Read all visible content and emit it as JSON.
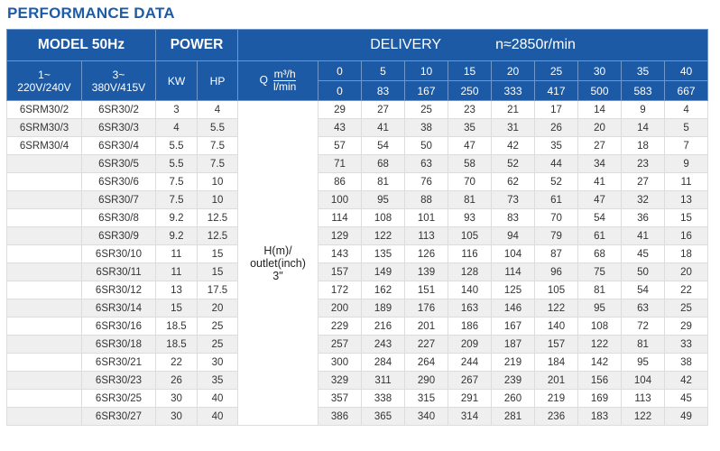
{
  "title": "PERFORMANCE DATA",
  "header": {
    "model": "MODEL 50Hz",
    "power": "POWER",
    "delivery": "DELIVERY",
    "speed": "n≈2850r/min",
    "single_phase": [
      "1~",
      "220V/240V"
    ],
    "three_phase": [
      "3~",
      "380V/415V"
    ],
    "kw": "KW",
    "hp": "HP",
    "q": "Q",
    "q_unit_top": "m³/h",
    "q_unit_bottom": "l/min",
    "flow_m3h": [
      "0",
      "5",
      "10",
      "15",
      "20",
      "25",
      "30",
      "35",
      "40"
    ],
    "flow_lmin": [
      "0",
      "83",
      "167",
      "250",
      "333",
      "417",
      "500",
      "583",
      "667"
    ]
  },
  "head_label": [
    "H(m)/",
    "outlet(inch)",
    "3\""
  ],
  "rows": [
    {
      "m1": "6SRM30/2",
      "m3": "6SR30/2",
      "kw": "3",
      "hp": "4",
      "h": [
        "29",
        "27",
        "25",
        "23",
        "21",
        "17",
        "14",
        "9",
        "4"
      ]
    },
    {
      "m1": "6SRM30/3",
      "m3": "6SR30/3",
      "kw": "4",
      "hp": "5.5",
      "h": [
        "43",
        "41",
        "38",
        "35",
        "31",
        "26",
        "20",
        "14",
        "5"
      ]
    },
    {
      "m1": "6SRM30/4",
      "m3": "6SR30/4",
      "kw": "5.5",
      "hp": "7.5",
      "h": [
        "57",
        "54",
        "50",
        "47",
        "42",
        "35",
        "27",
        "18",
        "7"
      ]
    },
    {
      "m1": "",
      "m3": "6SR30/5",
      "kw": "5.5",
      "hp": "7.5",
      "h": [
        "71",
        "68",
        "63",
        "58",
        "52",
        "44",
        "34",
        "23",
        "9"
      ]
    },
    {
      "m1": "",
      "m3": "6SR30/6",
      "kw": "7.5",
      "hp": "10",
      "h": [
        "86",
        "81",
        "76",
        "70",
        "62",
        "52",
        "41",
        "27",
        "11"
      ]
    },
    {
      "m1": "",
      "m3": "6SR30/7",
      "kw": "7.5",
      "hp": "10",
      "h": [
        "100",
        "95",
        "88",
        "81",
        "73",
        "61",
        "47",
        "32",
        "13"
      ]
    },
    {
      "m1": "",
      "m3": "6SR30/8",
      "kw": "9.2",
      "hp": "12.5",
      "h": [
        "114",
        "108",
        "101",
        "93",
        "83",
        "70",
        "54",
        "36",
        "15"
      ]
    },
    {
      "m1": "",
      "m3": "6SR30/9",
      "kw": "9.2",
      "hp": "12.5",
      "h": [
        "129",
        "122",
        "113",
        "105",
        "94",
        "79",
        "61",
        "41",
        "16"
      ]
    },
    {
      "m1": "",
      "m3": "6SR30/10",
      "kw": "11",
      "hp": "15",
      "h": [
        "143",
        "135",
        "126",
        "116",
        "104",
        "87",
        "68",
        "45",
        "18"
      ]
    },
    {
      "m1": "",
      "m3": "6SR30/11",
      "kw": "11",
      "hp": "15",
      "h": [
        "157",
        "149",
        "139",
        "128",
        "114",
        "96",
        "75",
        "50",
        "20"
      ]
    },
    {
      "m1": "",
      "m3": "6SR30/12",
      "kw": "13",
      "hp": "17.5",
      "h": [
        "172",
        "162",
        "151",
        "140",
        "125",
        "105",
        "81",
        "54",
        "22"
      ]
    },
    {
      "m1": "",
      "m3": "6SR30/14",
      "kw": "15",
      "hp": "20",
      "h": [
        "200",
        "189",
        "176",
        "163",
        "146",
        "122",
        "95",
        "63",
        "25"
      ]
    },
    {
      "m1": "",
      "m3": "6SR30/16",
      "kw": "18.5",
      "hp": "25",
      "h": [
        "229",
        "216",
        "201",
        "186",
        "167",
        "140",
        "108",
        "72",
        "29"
      ]
    },
    {
      "m1": "",
      "m3": "6SR30/18",
      "kw": "18.5",
      "hp": "25",
      "h": [
        "257",
        "243",
        "227",
        "209",
        "187",
        "157",
        "122",
        "81",
        "33"
      ]
    },
    {
      "m1": "",
      "m3": "6SR30/21",
      "kw": "22",
      "hp": "30",
      "h": [
        "300",
        "284",
        "264",
        "244",
        "219",
        "184",
        "142",
        "95",
        "38"
      ]
    },
    {
      "m1": "",
      "m3": "6SR30/23",
      "kw": "26",
      "hp": "35",
      "h": [
        "329",
        "311",
        "290",
        "267",
        "239",
        "201",
        "156",
        "104",
        "42"
      ]
    },
    {
      "m1": "",
      "m3": "6SR30/25",
      "kw": "30",
      "hp": "40",
      "h": [
        "357",
        "338",
        "315",
        "291",
        "260",
        "219",
        "169",
        "113",
        "45"
      ]
    },
    {
      "m1": "",
      "m3": "6SR30/27",
      "kw": "30",
      "hp": "40",
      "h": [
        "386",
        "365",
        "340",
        "314",
        "281",
        "236",
        "183",
        "122",
        "49"
      ]
    }
  ],
  "colors": {
    "header_blue": "#1c5aa6",
    "title_blue": "#1e5ca8",
    "row_alt": "#efefef"
  }
}
